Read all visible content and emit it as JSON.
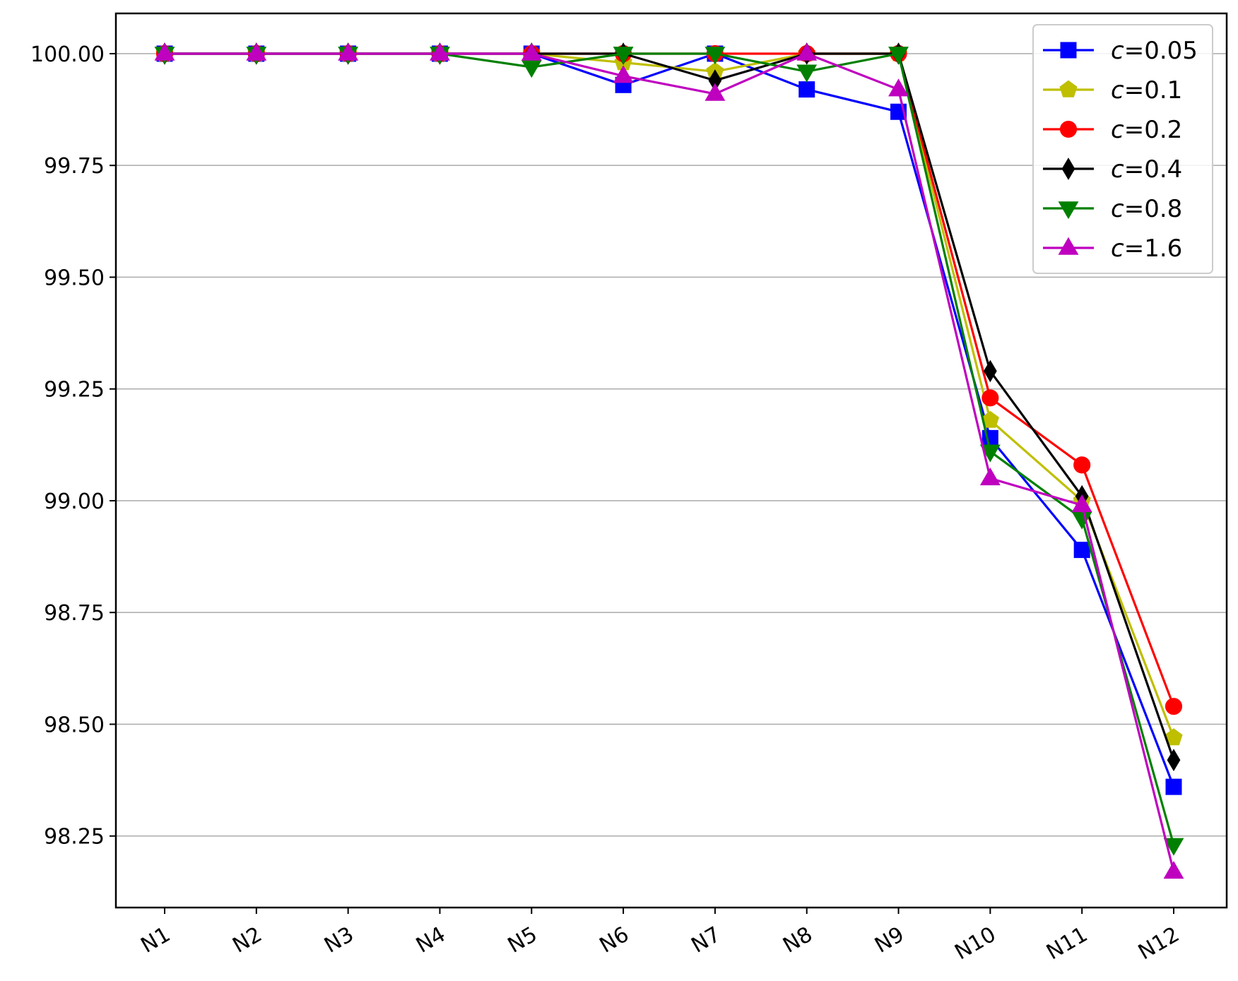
{
  "chart_data": {
    "type": "line",
    "title": "",
    "xlabel": "",
    "ylabel": "",
    "categories": [
      "N1",
      "N2",
      "N3",
      "N4",
      "N5",
      "N6",
      "N7",
      "N8",
      "N9",
      "N10",
      "N11",
      "N12"
    ],
    "ylim": [
      98.09,
      100.09
    ],
    "yticks": [
      98.25,
      98.5,
      98.75,
      99.0,
      99.25,
      99.5,
      99.75,
      100.0
    ],
    "ytick_labels": [
      "98.25",
      "98.50",
      "98.75",
      "99.00",
      "99.25",
      "99.50",
      "99.75",
      "100.00"
    ],
    "grid": "horizontal",
    "legend_position": "top-right",
    "series": [
      {
        "name": "c=0.05",
        "var": "c",
        "value_label": "=0.05",
        "color": "#0000ff",
        "marker": "square",
        "values": [
          100.0,
          100.0,
          100.0,
          100.0,
          100.0,
          99.93,
          100.0,
          99.92,
          99.87,
          99.14,
          98.89,
          98.36
        ]
      },
      {
        "name": "c=0.1",
        "var": "c",
        "value_label": "=0.1",
        "color": "#bfbf00",
        "marker": "pentagon",
        "values": [
          100.0,
          100.0,
          100.0,
          100.0,
          100.0,
          99.98,
          99.96,
          100.0,
          100.0,
          99.18,
          99.0,
          98.47
        ]
      },
      {
        "name": "c=0.2",
        "var": "c",
        "value_label": "=0.2",
        "color": "#ff0000",
        "marker": "circle",
        "values": [
          100.0,
          100.0,
          100.0,
          100.0,
          100.0,
          100.0,
          100.0,
          100.0,
          100.0,
          99.23,
          99.08,
          98.54
        ]
      },
      {
        "name": "c=0.4",
        "var": "c",
        "value_label": "=0.4",
        "color": "#000000",
        "marker": "diamond",
        "values": [
          100.0,
          100.0,
          100.0,
          100.0,
          100.0,
          100.0,
          99.94,
          100.0,
          100.0,
          99.29,
          99.01,
          98.42
        ]
      },
      {
        "name": "c=0.8",
        "var": "c",
        "value_label": "=0.8",
        "color": "#008000",
        "marker": "triangle-down",
        "values": [
          100.0,
          100.0,
          100.0,
          100.0,
          99.97,
          100.0,
          100.0,
          99.96,
          100.0,
          99.11,
          98.96,
          98.23
        ]
      },
      {
        "name": "c=1.6",
        "var": "c",
        "value_label": "=1.6",
        "color": "#bf00bf",
        "marker": "triangle-up",
        "values": [
          100.0,
          100.0,
          100.0,
          100.0,
          100.0,
          99.95,
          99.91,
          100.0,
          99.92,
          99.05,
          98.99,
          98.17
        ]
      }
    ]
  }
}
